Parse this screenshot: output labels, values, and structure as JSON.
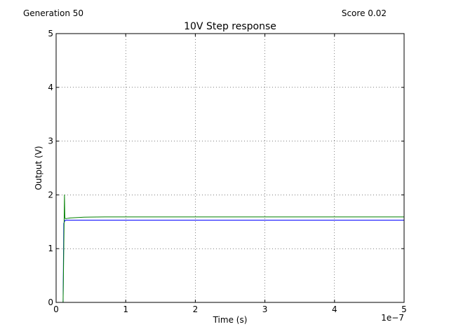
{
  "header": {
    "generation_label": "Generation 50",
    "score_label": "Score 0.02"
  },
  "chart_data": {
    "type": "line",
    "title": "10V Step response",
    "xlabel": "Time (s)",
    "ylabel": "Output (V)",
    "x_multiplier_label": "1e−7",
    "xlim": [
      0,
      5
    ],
    "ylim": [
      0,
      5
    ],
    "x_ticks": [
      0,
      1,
      2,
      3,
      4,
      5
    ],
    "y_ticks": [
      0,
      1,
      2,
      3,
      4,
      5
    ],
    "x_tick_labels": [
      "0",
      "1",
      "2",
      "3",
      "4",
      "5"
    ],
    "y_tick_labels": [
      "0",
      "1",
      "2",
      "3",
      "4",
      "5"
    ],
    "grid": true,
    "series": [
      {
        "color": "#0000ff",
        "x": [
          0,
          0.1,
          0.11,
          0.12,
          0.13,
          0.15,
          0.2,
          1,
          2,
          3,
          4,
          5
        ],
        "y": [
          0,
          0,
          1.47,
          1.5,
          1.53,
          1.53,
          1.53,
          1.53,
          1.53,
          1.53,
          1.53,
          1.53
        ]
      },
      {
        "color": "#008000",
        "x": [
          0,
          0.1,
          0.115,
          0.12,
          0.125,
          0.13,
          0.15,
          0.2,
          0.4,
          0.7,
          1,
          2,
          3,
          4,
          5
        ],
        "y": [
          0,
          0,
          1.5,
          2.0,
          1.58,
          1.56,
          1.56,
          1.57,
          1.585,
          1.59,
          1.59,
          1.59,
          1.59,
          1.59,
          1.59
        ]
      }
    ]
  }
}
